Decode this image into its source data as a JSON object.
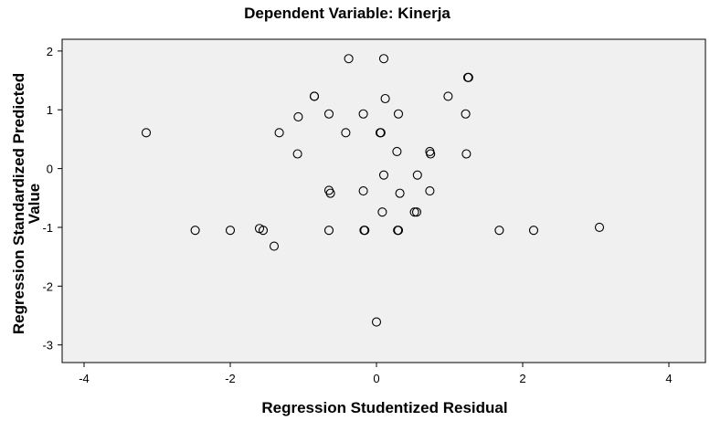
{
  "chart_data": {
    "type": "scatter",
    "title": "Dependent Variable: Kinerja",
    "xlabel": "Regression Studentized Residual",
    "ylabel_lines": [
      "Regression Standardized Predicted",
      "Value"
    ],
    "xlim": [
      -4.3,
      4.5
    ],
    "ylim": [
      -3.3,
      2.2
    ],
    "xticks": [
      -4,
      -2,
      0,
      2,
      4
    ],
    "yticks": [
      2,
      1,
      0,
      -1,
      -2,
      -3
    ],
    "xtick_labels": [
      "-4",
      "-2",
      "0",
      "2",
      "4"
    ],
    "ytick_labels": [
      "2",
      "1",
      "0",
      "-1",
      "-2",
      "-3"
    ],
    "grid": false,
    "legend": false,
    "colors": {
      "plot_background": "#f0f0f0",
      "marker_stroke": "#000000"
    },
    "points": [
      {
        "x": -3.15,
        "y": 0.61
      },
      {
        "x": -2.48,
        "y": -1.05
      },
      {
        "x": -2.0,
        "y": -1.05
      },
      {
        "x": -1.6,
        "y": -1.02
      },
      {
        "x": -1.55,
        "y": -1.05
      },
      {
        "x": -1.4,
        "y": -1.32
      },
      {
        "x": -1.33,
        "y": 0.61
      },
      {
        "x": -1.07,
        "y": 0.88
      },
      {
        "x": -1.08,
        "y": 0.25
      },
      {
        "x": -0.85,
        "y": 1.23
      },
      {
        "x": -0.85,
        "y": 1.23
      },
      {
        "x": -0.65,
        "y": 0.93
      },
      {
        "x": -0.65,
        "y": -0.37
      },
      {
        "x": -0.63,
        "y": -0.42
      },
      {
        "x": -0.65,
        "y": -1.05
      },
      {
        "x": -0.38,
        "y": 1.87
      },
      {
        "x": -0.42,
        "y": 0.61
      },
      {
        "x": -0.18,
        "y": 0.93
      },
      {
        "x": -0.18,
        "y": -0.38
      },
      {
        "x": -0.17,
        "y": -1.05
      },
      {
        "x": -0.16,
        "y": -1.05
      },
      {
        "x": 0.05,
        "y": 0.61
      },
      {
        "x": 0.06,
        "y": 0.61
      },
      {
        "x": 0.08,
        "y": -0.74
      },
      {
        "x": 0.1,
        "y": 1.87
      },
      {
        "x": 0.12,
        "y": 1.19
      },
      {
        "x": 0.1,
        "y": -0.11
      },
      {
        "x": 0.28,
        "y": 0.29
      },
      {
        "x": 0.3,
        "y": 0.93
      },
      {
        "x": 0.32,
        "y": -0.42
      },
      {
        "x": 0.29,
        "y": -1.05
      },
      {
        "x": 0.3,
        "y": -1.05
      },
      {
        "x": 0.0,
        "y": -2.61
      },
      {
        "x": 0.52,
        "y": -0.74
      },
      {
        "x": 0.55,
        "y": -0.74
      },
      {
        "x": 0.56,
        "y": -0.11
      },
      {
        "x": 0.73,
        "y": 0.29
      },
      {
        "x": 0.74,
        "y": 0.25
      },
      {
        "x": 0.73,
        "y": -0.38
      },
      {
        "x": 0.98,
        "y": 1.23
      },
      {
        "x": 1.22,
        "y": 0.93
      },
      {
        "x": 1.23,
        "y": 0.25
      },
      {
        "x": 1.25,
        "y": 1.55
      },
      {
        "x": 1.26,
        "y": 1.55
      },
      {
        "x": 1.68,
        "y": -1.05
      },
      {
        "x": 2.15,
        "y": -1.05
      },
      {
        "x": 3.05,
        "y": -1.0
      }
    ]
  }
}
